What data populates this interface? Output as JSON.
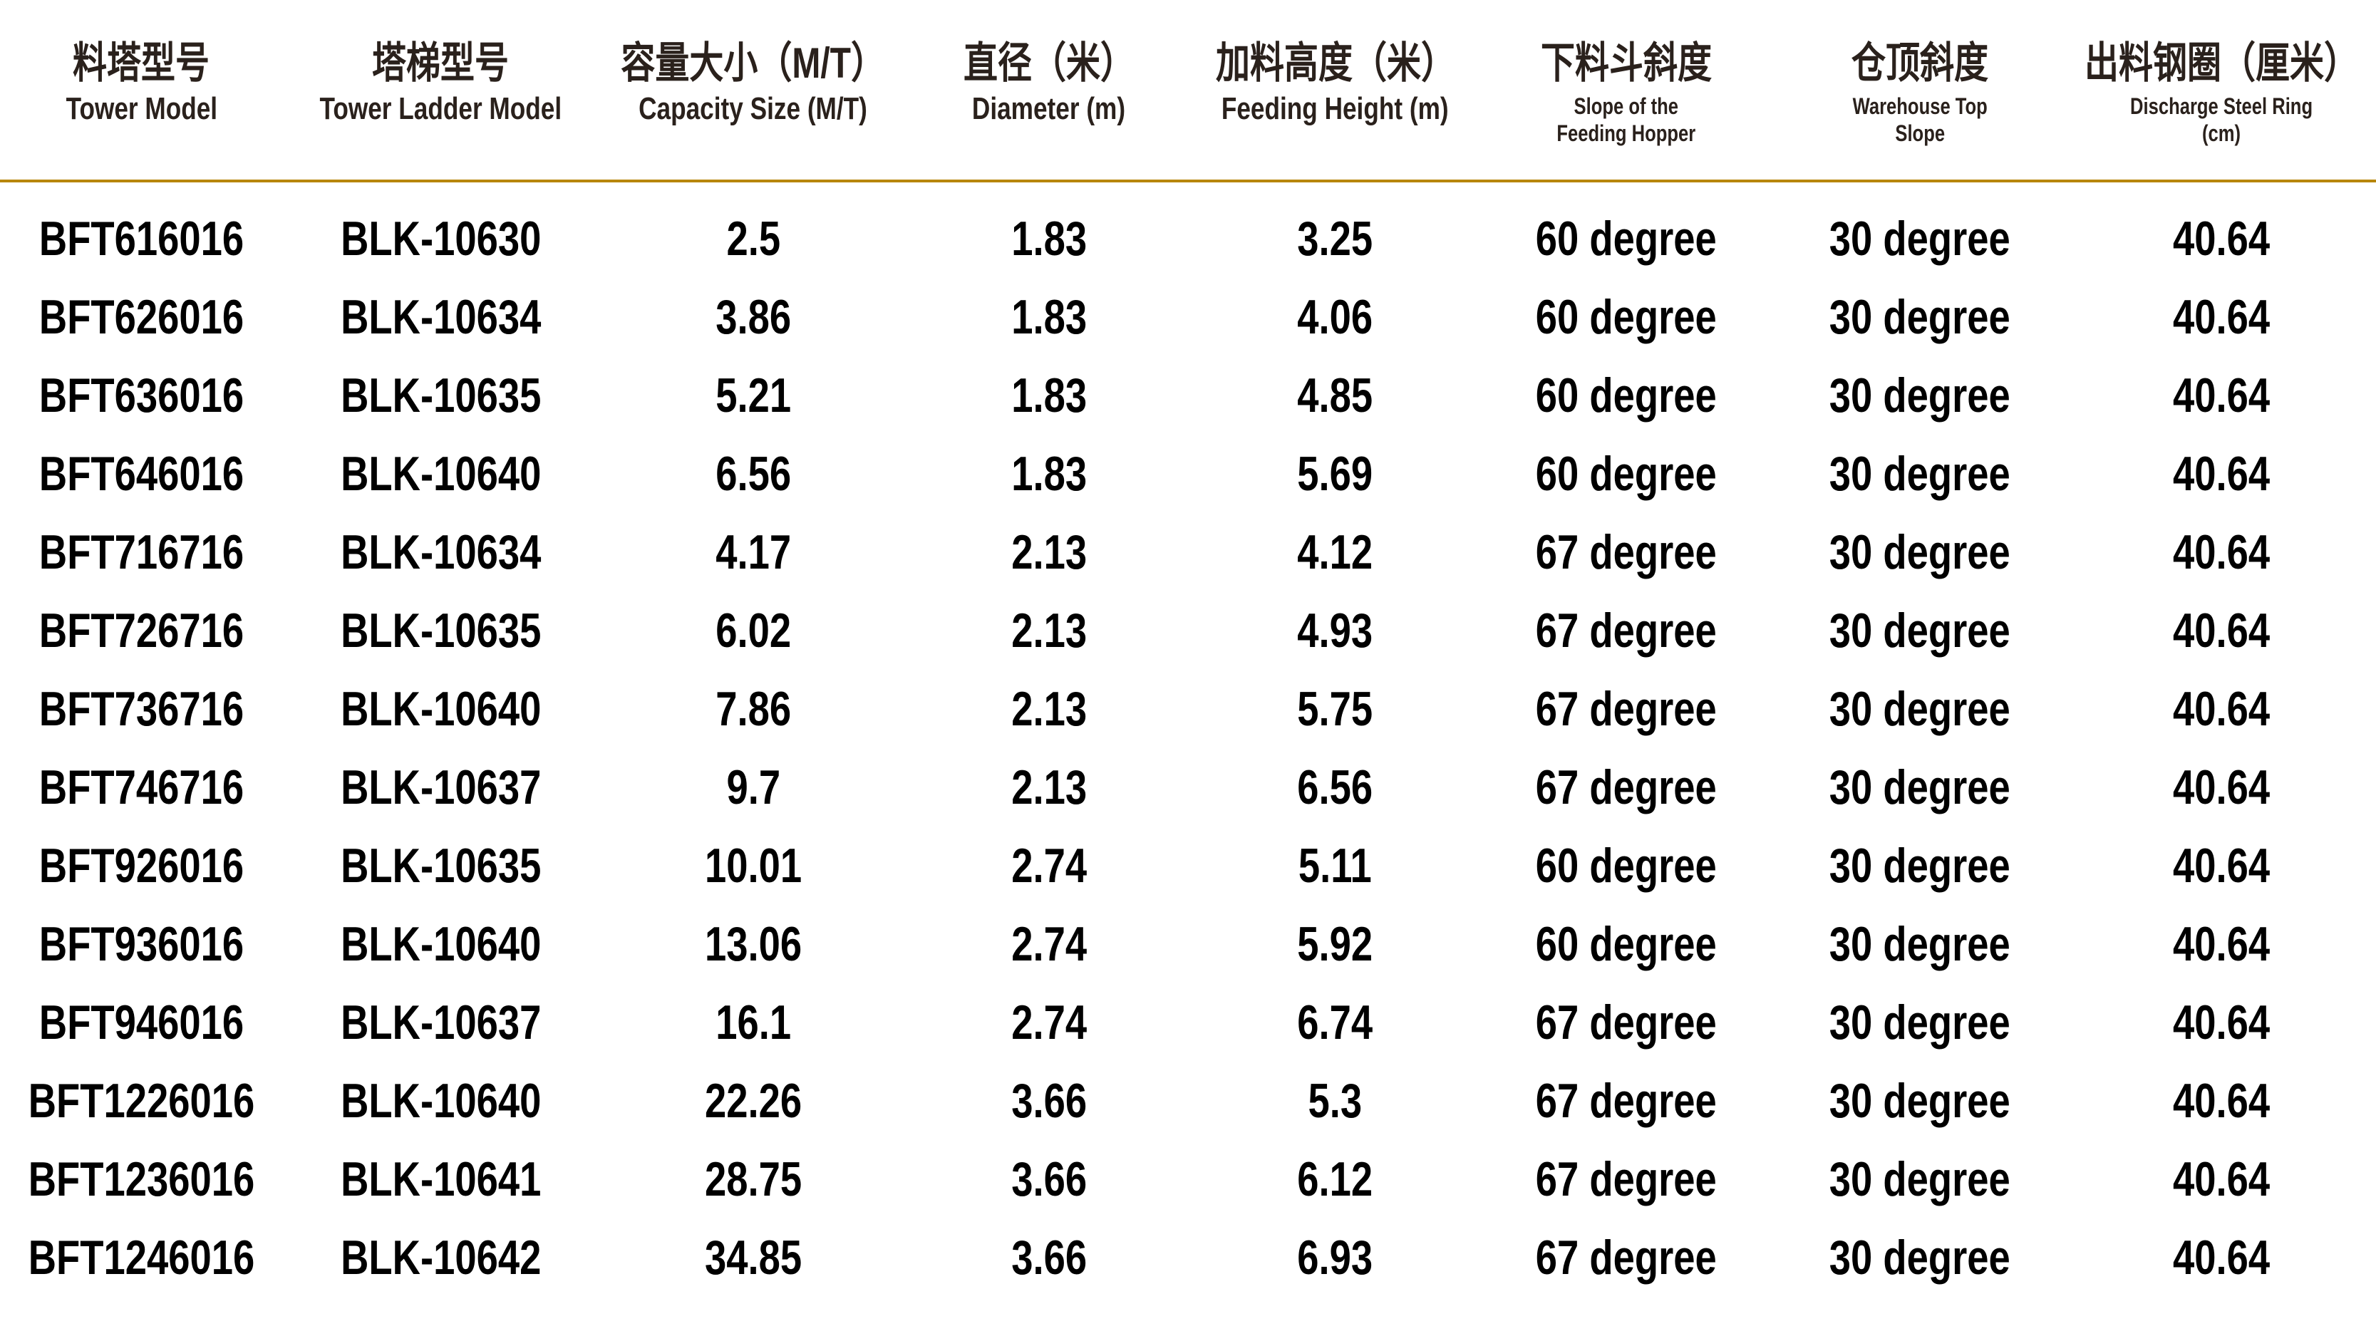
{
  "colors": {
    "background": "#ffffff",
    "header_text": "#2a211c",
    "data_text": "#000000",
    "divider_gold": "#b8860b"
  },
  "table": {
    "columns": [
      {
        "zh": "料塔型号",
        "en": "Tower Model"
      },
      {
        "zh": "塔梯型号",
        "en": "Tower Ladder Model"
      },
      {
        "zh": "容量大小（M/T）",
        "en": "Capacity Size (M/T)"
      },
      {
        "zh": "直径（米）",
        "en": "Diameter (m)"
      },
      {
        "zh": "加料高度（米）",
        "en": "Feeding Height (m)"
      },
      {
        "zh": "下料斗斜度",
        "en": "Slope of the\nFeeding Hopper"
      },
      {
        "zh": "仓顶斜度",
        "en": "Warehouse Top\nSlope"
      },
      {
        "zh": "出料钢圈（厘米）",
        "en": "Discharge Steel Ring\n(cm)"
      }
    ],
    "rows": [
      [
        "BFT616016",
        "BLK-10630",
        "2.5",
        "1.83",
        "3.25",
        "60 degree",
        "30 degree",
        "40.64"
      ],
      [
        "BFT626016",
        "BLK-10634",
        "3.86",
        "1.83",
        "4.06",
        "60 degree",
        "30 degree",
        "40.64"
      ],
      [
        "BFT636016",
        "BLK-10635",
        "5.21",
        "1.83",
        "4.85",
        "60 degree",
        "30 degree",
        "40.64"
      ],
      [
        "BFT646016",
        "BLK-10640",
        "6.56",
        "1.83",
        "5.69",
        "60 degree",
        "30 degree",
        "40.64"
      ],
      [
        "BFT716716",
        "BLK-10634",
        "4.17",
        "2.13",
        "4.12",
        "67 degree",
        "30 degree",
        "40.64"
      ],
      [
        "BFT726716",
        "BLK-10635",
        "6.02",
        "2.13",
        "4.93",
        "67 degree",
        "30 degree",
        "40.64"
      ],
      [
        "BFT736716",
        "BLK-10640",
        "7.86",
        "2.13",
        "5.75",
        "67 degree",
        "30 degree",
        "40.64"
      ],
      [
        "BFT746716",
        "BLK-10637",
        "9.7",
        "2.13",
        "6.56",
        "67 degree",
        "30 degree",
        "40.64"
      ],
      [
        "BFT926016",
        "BLK-10635",
        "10.01",
        "2.74",
        "5.11",
        "60 degree",
        "30 degree",
        "40.64"
      ],
      [
        "BFT936016",
        "BLK-10640",
        "13.06",
        "2.74",
        "5.92",
        "60 degree",
        "30 degree",
        "40.64"
      ],
      [
        "BFT946016",
        "BLK-10637",
        "16.1",
        "2.74",
        "6.74",
        "67 degree",
        "30 degree",
        "40.64"
      ],
      [
        "BFT1226016",
        "BLK-10640",
        "22.26",
        "3.66",
        "5.3",
        "67 degree",
        "30 degree",
        "40.64"
      ],
      [
        "BFT1236016",
        "BLK-10641",
        "28.75",
        "3.66",
        "6.12",
        "67 degree",
        "30 degree",
        "40.64"
      ],
      [
        "BFT1246016",
        "BLK-10642",
        "34.85",
        "3.66",
        "6.93",
        "67 degree",
        "30 degree",
        "40.64"
      ]
    ]
  }
}
